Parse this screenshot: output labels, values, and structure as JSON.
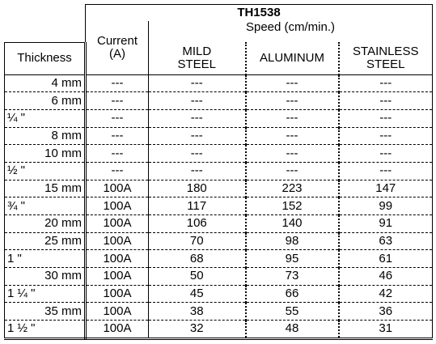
{
  "table": {
    "title": "TH1538",
    "header": {
      "thickness": "Thickness",
      "current": "Current (A)",
      "speed": "Speed (cm/min.)",
      "columns": [
        "MILD STEEL",
        "ALUMINUM",
        "STAINLESS STEEL"
      ]
    },
    "rows": [
      [
        "4 mm",
        "---",
        "---",
        "---",
        "---"
      ],
      [
        "6 mm",
        "---",
        "---",
        "---",
        "---"
      ],
      [
        "¼ \"",
        "---",
        "---",
        "---",
        "---"
      ],
      [
        "8 mm",
        "---",
        "---",
        "---",
        "---"
      ],
      [
        "10 mm",
        "---",
        "---",
        "---",
        "---"
      ],
      [
        "½ \"",
        "---",
        "---",
        "---",
        "---"
      ],
      [
        "15 mm",
        "100A",
        180,
        223,
        147
      ],
      [
        "¾ \"",
        "100A",
        117,
        152,
        99
      ],
      [
        "20 mm",
        "100A",
        106,
        140,
        91
      ],
      [
        "25 mm",
        "100A",
        70,
        98,
        63
      ],
      [
        "1 \"",
        "100A",
        68,
        95,
        61
      ],
      [
        "30 mm",
        "100A",
        50,
        73,
        46
      ],
      [
        "1 ¼ \"",
        "100A",
        45,
        66,
        42
      ],
      [
        "35 mm",
        "100A",
        38,
        55,
        36
      ],
      [
        "1 ½ \"",
        "100A",
        32,
        48,
        31
      ]
    ]
  }
}
